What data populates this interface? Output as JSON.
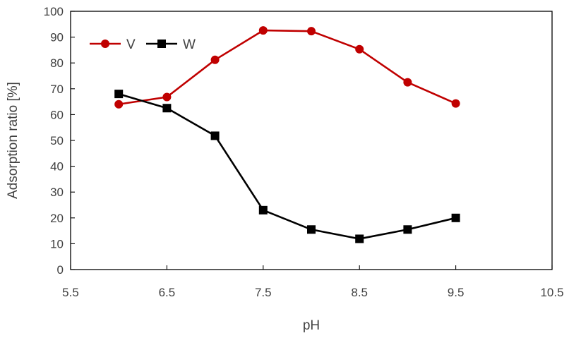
{
  "chart_data": {
    "type": "line",
    "xlabel": "pH",
    "ylabel": "Adsorption ratio [%]",
    "xlim": [
      5.5,
      10.5
    ],
    "ylim": [
      0,
      100
    ],
    "xticks": [
      5.5,
      6.5,
      7.5,
      8.5,
      9.5,
      10.5
    ],
    "yticks": [
      0,
      10,
      20,
      30,
      40,
      50,
      60,
      70,
      80,
      90,
      100
    ],
    "grid": false,
    "legend_position": "top-left",
    "series": [
      {
        "name": "V",
        "color": "#c00000",
        "marker": "circle",
        "x": [
          6.0,
          6.5,
          7.0,
          7.5,
          8.0,
          8.5,
          9.0,
          9.5
        ],
        "y": [
          64,
          66.8,
          81.2,
          92.6,
          92.3,
          85.3,
          72.5,
          64.3
        ]
      },
      {
        "name": "W",
        "color": "#000000",
        "marker": "square",
        "x": [
          6.0,
          6.5,
          7.0,
          7.5,
          8.0,
          8.5,
          9.0,
          9.5
        ],
        "y": [
          68,
          62.5,
          51.8,
          23,
          15.5,
          11.9,
          15.5,
          20
        ]
      }
    ]
  }
}
